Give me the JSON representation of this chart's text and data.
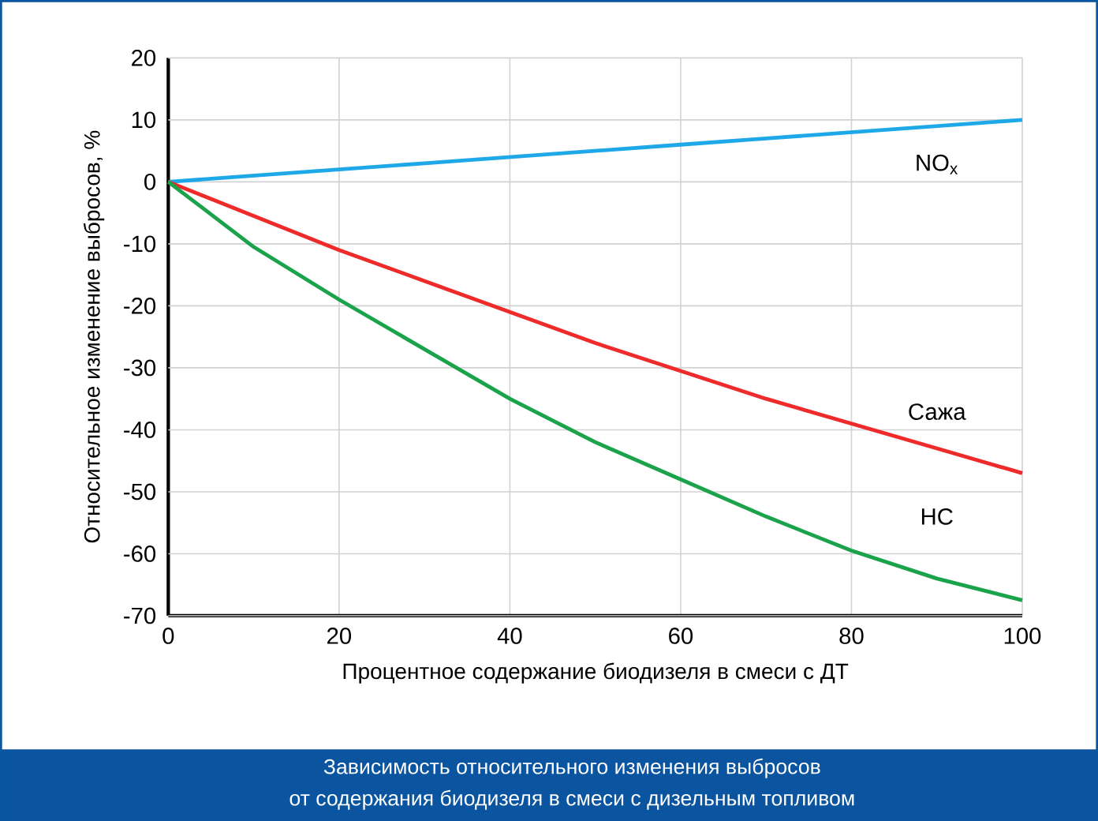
{
  "chart_data": {
    "type": "line",
    "title": "Зависимость относительного изменения выбросов",
    "subtitle": "от содержания биодизеля в смеси с дизельным топливом",
    "xlabel": "Процентное содержание биодизеля в смеси с ДТ",
    "ylabel": "Относительное изменение выбросов, %",
    "x": [
      0,
      10,
      20,
      30,
      40,
      50,
      60,
      70,
      80,
      90,
      100
    ],
    "series": [
      {
        "name": "NO$_{x}$",
        "color": "#1fa8e8",
        "values": [
          0,
          1,
          2,
          3,
          4,
          5,
          6,
          7,
          8,
          9,
          10
        ]
      },
      {
        "name": "Сажа",
        "color": "#ee2a2a",
        "values": [
          0,
          -5.5,
          -11,
          -16,
          -21,
          -26,
          -30.5,
          -35,
          -39,
          -43,
          -47
        ]
      },
      {
        "name": "HC",
        "color": "#1aa34a",
        "values": [
          0,
          -10.5,
          -19,
          -27,
          -35,
          -42,
          -48,
          -54,
          -59.5,
          -64,
          -67.5
        ]
      }
    ],
    "xlim": [
      0,
      100
    ],
    "ylim": [
      -70,
      20
    ],
    "xticks": [
      0,
      20,
      40,
      60,
      80,
      100
    ],
    "yticks": [
      20,
      10,
      0,
      -10,
      -20,
      -30,
      -40,
      -50,
      -60,
      -70
    ],
    "grid": true
  }
}
